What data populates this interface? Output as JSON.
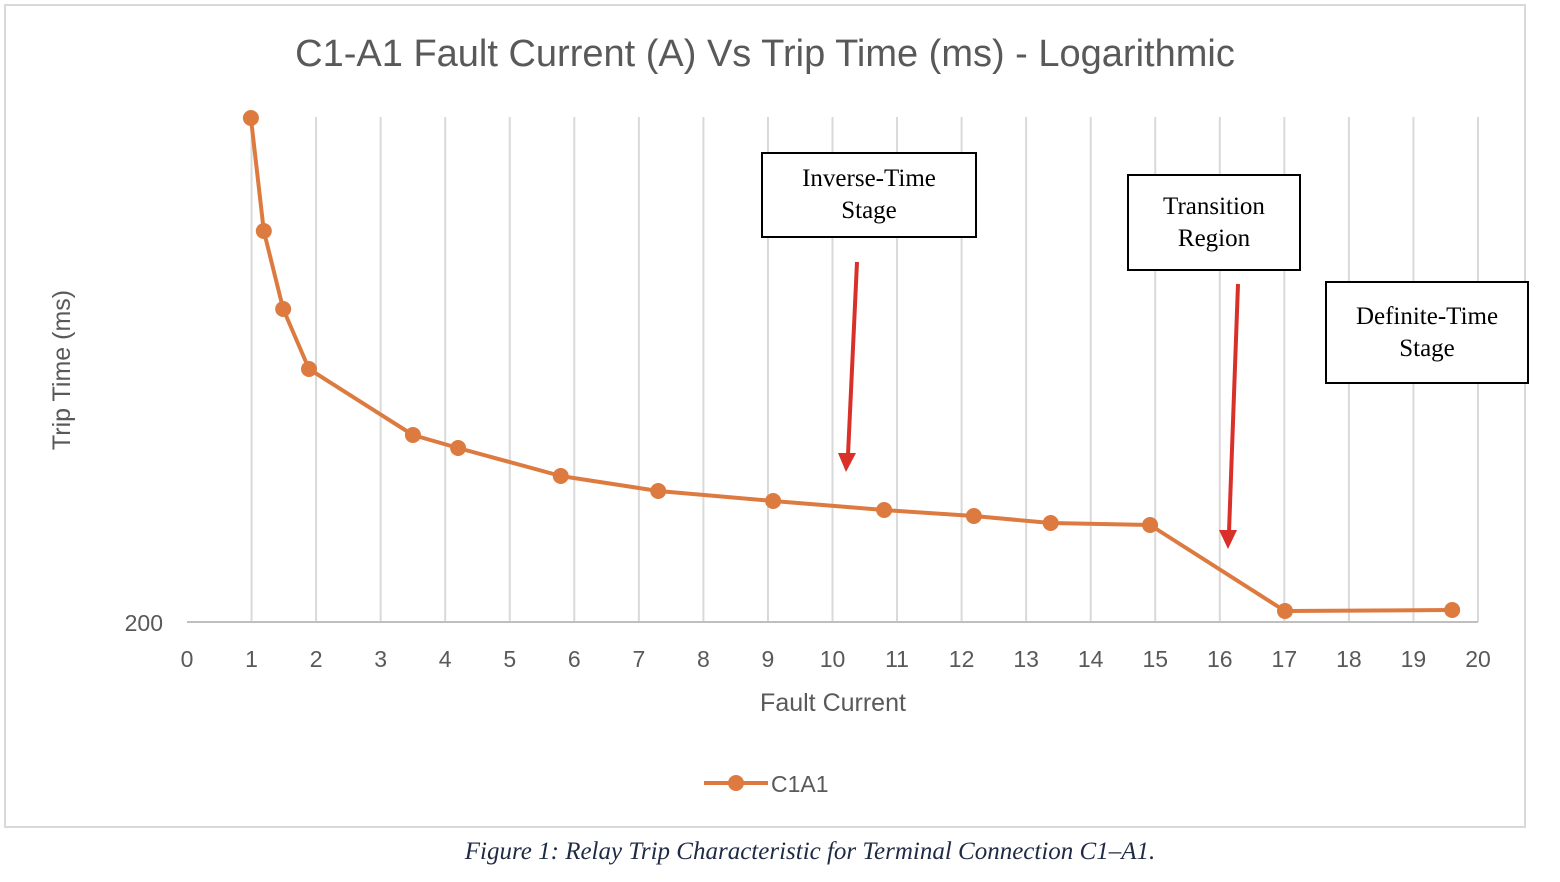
{
  "chart_data": {
    "type": "line",
    "title": "C1-A1 Fault Current (A) Vs Trip Time (ms) - Logarithmic",
    "xlabel": "Fault Current",
    "ylabel": "Trip Time (ms)",
    "xlim": [
      0,
      20
    ],
    "x_ticks": [
      "0",
      "1",
      "2",
      "3",
      "4",
      "5",
      "6",
      "7",
      "8",
      "9",
      "10",
      "11",
      "12",
      "13",
      "14",
      "15",
      "16",
      "17",
      "18",
      "19",
      "20"
    ],
    "y_scale": "log",
    "y_tick_labels": [
      "200"
    ],
    "ylim_approx": [
      200,
      2000
    ],
    "grid": {
      "vertical": true,
      "horizontal": false
    },
    "legend": {
      "position": "bottom",
      "entries": [
        "C1A1"
      ]
    },
    "series": [
      {
        "name": "C1A1",
        "color": "#dd7a3f",
        "x": [
          0.99,
          1.19,
          1.49,
          1.89,
          3.5,
          4.2,
          5.79,
          7.3,
          9.08,
          10.8,
          12.19,
          13.38,
          14.92,
          17.01,
          19.6
        ],
        "y": [
          1990,
          1189,
          834,
          634,
          469,
          442,
          389,
          363,
          347,
          333,
          324,
          314,
          311,
          210,
          212
        ],
        "py": [
          118,
          231,
          309,
          369,
          435,
          448,
          476,
          491,
          501,
          510,
          516,
          523,
          525,
          611,
          610
        ]
      }
    ],
    "annotations": [
      {
        "text": [
          "Inverse-Time",
          "Stage"
        ],
        "arrow_to_x": 10.2
      },
      {
        "text": [
          "Transition",
          "Region"
        ],
        "arrow_to_x": 16.1
      },
      {
        "text": [
          "Definite-Time",
          "Stage"
        ]
      }
    ]
  },
  "caption": "Figure 1: Relay Trip Characteristic for Terminal Connection C1–A1.",
  "colors": {
    "series": "#dd7a3f",
    "arrow": "#d9302a",
    "grid": "#d9d9d9",
    "axis_text": "#595959"
  }
}
